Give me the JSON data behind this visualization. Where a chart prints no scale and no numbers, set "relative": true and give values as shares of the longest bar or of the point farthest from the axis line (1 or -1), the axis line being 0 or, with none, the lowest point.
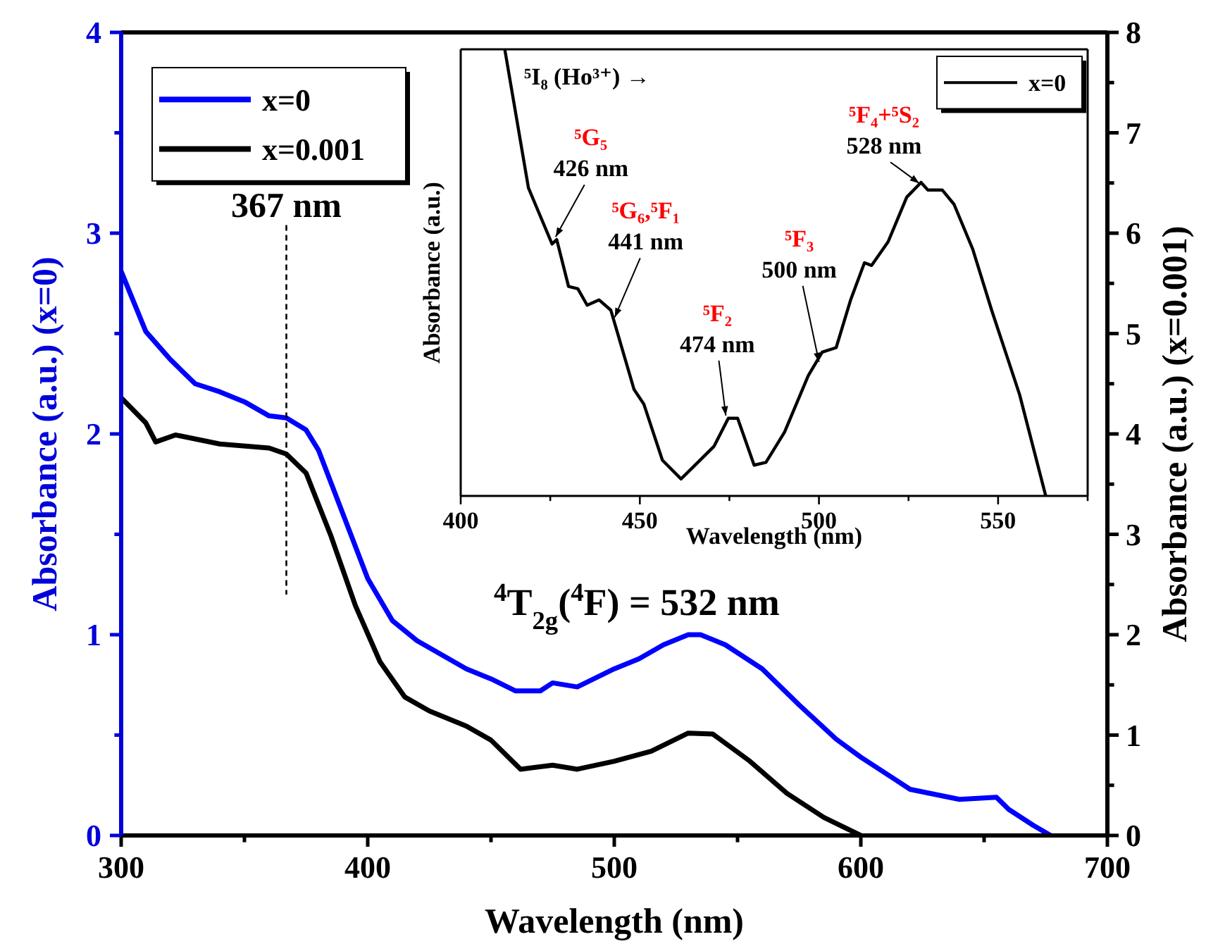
{
  "chart_data": [
    {
      "type": "line",
      "xlabel": "Wavelength (nm)",
      "ylabel": "Absorbance (a.u.) (x=0)",
      "y2label": "Absorbance (a.u.) (x=0.001)",
      "xlim": [
        300,
        700
      ],
      "xticks": [
        300,
        {
          "value": 350,
          "label": null
        },
        400,
        {
          "value": 450,
          "label": null
        },
        500,
        {
          "value": 550,
          "label": null
        },
        600,
        {
          "value": 650,
          "label": null
        },
        700
      ],
      "ylim": [
        0,
        4
      ],
      "yticks": [
        0,
        {
          "value": 0.5,
          "label": null
        },
        1,
        {
          "value": 1.5,
          "label": null
        },
        2,
        {
          "value": 2.5,
          "label": null
        },
        3,
        {
          "value": 3.5,
          "label": null
        },
        4
      ],
      "y2lim": [
        0,
        8
      ],
      "y2ticks": [
        0,
        {
          "value": 0.5,
          "label": null
        },
        1,
        {
          "value": 1.5,
          "label": null
        },
        2,
        {
          "value": 2.5,
          "label": null
        },
        3,
        {
          "value": 3.5,
          "label": null
        },
        4,
        {
          "value": 4.5,
          "label": null
        },
        5,
        {
          "value": 5.5,
          "label": null
        },
        6,
        {
          "value": 6.5,
          "label": null
        },
        7,
        {
          "value": 7.5,
          "label": null
        },
        8
      ],
      "legend": "top left",
      "series": [
        {
          "name": "x=0",
          "color": "#0000ff",
          "x": [
            300,
            310,
            320,
            330,
            340,
            350,
            360,
            367,
            375,
            380,
            390,
            400,
            410,
            420,
            430,
            440,
            450,
            460,
            470,
            475,
            485,
            500,
            510,
            520,
            530,
            535,
            545,
            560,
            575,
            590,
            600,
            620,
            640,
            655,
            660,
            670,
            677
          ],
          "values": [
            2.81,
            2.51,
            2.37,
            2.25,
            2.21,
            2.16,
            2.09,
            2.08,
            2.02,
            1.92,
            1.6,
            1.28,
            1.07,
            0.97,
            0.9,
            0.83,
            0.78,
            0.72,
            0.72,
            0.76,
            0.74,
            0.83,
            0.88,
            0.95,
            1.0,
            1.0,
            0.95,
            0.83,
            0.65,
            0.48,
            0.39,
            0.23,
            0.18,
            0.19,
            0.13,
            0.05,
            0
          ]
        },
        {
          "name": "x=0.001",
          "color": "#000000",
          "axis": "y2",
          "x": [
            300,
            310,
            314,
            322,
            340,
            360,
            367,
            375,
            385,
            395,
            405,
            415,
            425,
            440,
            450,
            462,
            475,
            485,
            500,
            515,
            530,
            540,
            555,
            570,
            585,
            600
          ],
          "values": [
            4.36,
            4.11,
            3.92,
            3.99,
            3.9,
            3.86,
            3.8,
            3.61,
            2.99,
            2.29,
            1.73,
            1.38,
            1.24,
            1.09,
            0.95,
            0.66,
            0.7,
            0.66,
            0.74,
            0.84,
            1.02,
            1.01,
            0.74,
            0.42,
            0.18,
            0
          ]
        }
      ],
      "ref_lines": [
        {
          "axis": "x",
          "value": 367,
          "label": "367 nm",
          "line_style": "dashed"
        }
      ],
      "annotations": [
        {
          "text": "$^{4}$T$_{2g}$($^{4}$F) = 532 nm",
          "x": 532,
          "y": 1.0
        }
      ]
    },
    {
      "type": "line",
      "relative": true,
      "xlabel": "Wavelength (nm)",
      "ylabel": "Absorbance (a.u.)",
      "tick_labels": "x",
      "xlim": [
        400,
        575
      ],
      "xticks": [
        400,
        {
          "value": 425,
          "label": null
        },
        450,
        {
          "value": 475,
          "label": null
        },
        500,
        {
          "value": 525,
          "label": null
        },
        550,
        {
          "value": 575,
          "label": null
        }
      ],
      "legend": "top right",
      "series": [
        {
          "name": "x=0",
          "color": "#000000",
          "x": [
            412.3,
            418.9,
            425.5,
            426.8,
            430.1,
            432.7,
            435.3,
            438.6,
            441.9,
            443.8,
            448.4,
            451.1,
            456.3,
            461.5,
            464.8,
            470.7,
            474.7,
            477.3,
            481.9,
            485.2,
            490.4,
            497.0,
            500.9,
            504.8,
            508.8,
            512.7,
            514.7,
            519.3,
            524.5,
            528.5,
            530.4,
            534.4,
            537.7,
            542.9,
            548.2,
            556.0,
            563.3
          ],
          "values": [
            1,
            0.69,
            0.564,
            0.574,
            0.469,
            0.464,
            0.427,
            0.439,
            0.416,
            0.364,
            0.238,
            0.206,
            0.08,
            0.038,
            0.064,
            0.111,
            0.174,
            0.174,
            0.069,
            0.075,
            0.143,
            0.269,
            0.322,
            0.332,
            0.438,
            0.522,
            0.516,
            0.569,
            0.669,
            0.702,
            0.685,
            0.685,
            0.653,
            0.553,
            0.416,
            0.227,
            0
          ]
        }
      ],
      "annotations": [
        "⁵I₈ (Ho³⁺) →",
        {
          "text": "⁵G₅\n426 nm",
          "x": 426.5,
          "y": 0.58
        },
        {
          "text": "⁵G₆,⁵F₁\n441 nm",
          "x": 443,
          "y": 0.4
        },
        {
          "text": "⁵F₂\n474 nm",
          "x": 474,
          "y": 0.18
        },
        {
          "text": "⁵F₃\n500 nm",
          "x": 500,
          "y": 0.3
        },
        {
          "text": "⁵F₄+⁵S₂\n528 nm",
          "x": 528,
          "y": 0.7
        }
      ]
    }
  ]
}
